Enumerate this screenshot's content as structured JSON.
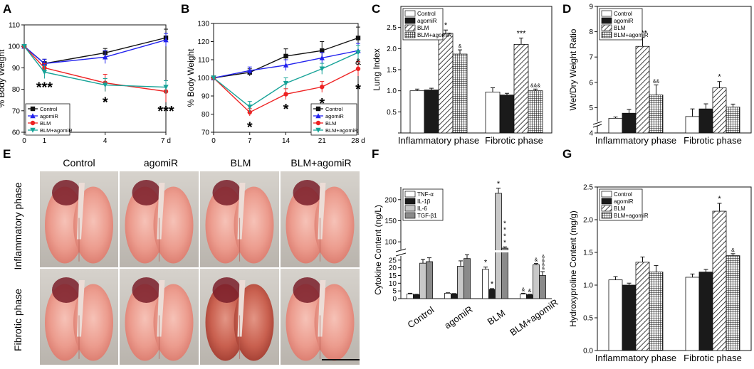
{
  "figure": {
    "panel_letters": [
      "A",
      "B",
      "C",
      "D",
      "E",
      "F",
      "G"
    ]
  },
  "colors": {
    "control": "#111111",
    "agomir": "#2222ee",
    "blm": "#ee2222",
    "blm_agomir": "#17a398",
    "bar_white": "#ffffff",
    "bar_black": "#1a1a1a",
    "bar_lightgray": "#c8c8c8",
    "bar_gray": "#8a8a8a"
  },
  "panelE": {
    "column_labels": [
      "Control",
      "agomiR",
      "BLM",
      "BLM+agomiR"
    ],
    "row_labels": [
      "Inflammatory phase",
      "Fibrotic phase"
    ],
    "lung_color_scores": [
      [
        0.2,
        0.1,
        0.35,
        0.3
      ],
      [
        0.25,
        0.3,
        0.7,
        0.35
      ]
    ]
  },
  "chart_data": [
    {
      "panel": "A",
      "type": "line",
      "x": [
        0,
        1,
        4,
        7
      ],
      "xticks": [
        "0",
        "1",
        "4",
        "7 d"
      ],
      "ylabel": "% Body Weight",
      "xlabel": "",
      "ylim": [
        60,
        110
      ],
      "yticks": [
        60,
        70,
        80,
        90,
        100,
        110
      ],
      "series": [
        {
          "name": "Control",
          "color_key": "control",
          "marker": "square",
          "values": [
            100,
            92,
            97,
            104
          ],
          "err": [
            0,
            2,
            2,
            4
          ]
        },
        {
          "name": "agomiR",
          "color_key": "agomir",
          "marker": "triangle",
          "values": [
            100,
            92,
            95,
            103
          ],
          "err": [
            0,
            2,
            3,
            3
          ]
        },
        {
          "name": "BLM",
          "color_key": "blm",
          "marker": "circle",
          "values": [
            100,
            90,
            83,
            79
          ],
          "err": [
            0,
            2,
            4,
            5
          ]
        },
        {
          "name": "BLM+agomiR",
          "color_key": "blm_agomir",
          "marker": "triangle-down",
          "values": [
            100,
            88,
            82,
            81
          ],
          "err": [
            0,
            3,
            3,
            3
          ]
        }
      ],
      "annotations": [
        {
          "text": "***",
          "x": 1,
          "y": 81
        },
        {
          "text": "*",
          "x": 4,
          "y": 74
        },
        {
          "text": "***",
          "x": 7,
          "y": 70
        }
      ],
      "legend": "bottom-left"
    },
    {
      "panel": "B",
      "type": "line",
      "x": [
        0,
        7,
        14,
        21,
        28
      ],
      "xticks": [
        "0",
        "7",
        "14",
        "21",
        "28 d"
      ],
      "ylabel": "% Body Weight",
      "xlabel": "",
      "ylim": [
        70,
        130
      ],
      "yticks": [
        70,
        80,
        90,
        100,
        110,
        120,
        130
      ],
      "series": [
        {
          "name": "Control",
          "color_key": "control",
          "marker": "square",
          "values": [
            100,
            103,
            112,
            115,
            122
          ],
          "err": [
            0,
            2,
            4,
            5,
            6
          ]
        },
        {
          "name": "agomiR",
          "color_key": "agomir",
          "marker": "triangle",
          "values": [
            100,
            104,
            107,
            111,
            115
          ],
          "err": [
            0,
            2,
            3,
            3,
            4
          ]
        },
        {
          "name": "BLM",
          "color_key": "blm",
          "marker": "circle",
          "values": [
            100,
            81,
            91,
            95,
            105
          ],
          "err": [
            0,
            2,
            3,
            3,
            4
          ]
        },
        {
          "name": "BLM+agomiR",
          "color_key": "blm_agomir",
          "marker": "triangle-down",
          "values": [
            100,
            84,
            97,
            105,
            114
          ],
          "err": [
            0,
            3,
            3,
            3,
            4
          ]
        }
      ],
      "annotations": [
        {
          "text": "*",
          "x": 7,
          "y": 73
        },
        {
          "text": "*",
          "x": 14,
          "y": 83
        },
        {
          "text": "*",
          "x": 21,
          "y": 86
        },
        {
          "text": "*",
          "x": 28,
          "y": 94
        },
        {
          "text": "&",
          "x": 28,
          "y": 110
        }
      ],
      "legend": "bottom-right"
    },
    {
      "panel": "C",
      "type": "bar",
      "categories": [
        "Inflammatory phase",
        "Fibrotic phase"
      ],
      "ylabel": "Lung Index",
      "xlabel": "",
      "ylim": [
        0,
        3.0
      ],
      "yticks": [
        0,
        0.5,
        1.0,
        1.5,
        2.0,
        2.5
      ],
      "ytick_labels": [
        "",
        "0.5",
        "1.0",
        "1.5",
        "2.0",
        "2.5"
      ],
      "series": [
        {
          "name": "Control",
          "fill": "white",
          "values": [
            1.0,
            0.97
          ],
          "err": [
            0.04,
            0.1
          ]
        },
        {
          "name": "agomiR",
          "fill": "black",
          "values": [
            1.02,
            0.9
          ],
          "err": [
            0.04,
            0.04
          ]
        },
        {
          "name": "BLM",
          "fill": "diagonal",
          "values": [
            2.36,
            2.1
          ],
          "err": [
            0.08,
            0.15
          ]
        },
        {
          "name": "BLM+agomiR",
          "fill": "grid",
          "values": [
            1.87,
            1.0
          ],
          "err": [
            0.1,
            0.04
          ]
        }
      ],
      "sig": [
        {
          "cat": 0,
          "series": 2,
          "text": "*"
        },
        {
          "cat": 0,
          "series": 3,
          "text": "&"
        },
        {
          "cat": 1,
          "series": 2,
          "text": "***"
        },
        {
          "cat": 1,
          "series": 3,
          "text": "&&&"
        }
      ],
      "legend": "top-left"
    },
    {
      "panel": "D",
      "type": "bar",
      "categories": [
        "Inflammatory phase",
        "Fibrotic phase"
      ],
      "ylabel": "Wet/Dry Weight Ratio",
      "xlabel": "",
      "ylim": [
        4,
        9
      ],
      "axis_break": true,
      "yticks": [
        4,
        5,
        6,
        7,
        8,
        9
      ],
      "series": [
        {
          "name": "Control",
          "fill": "white",
          "values": [
            4.58,
            4.65
          ],
          "err": [
            0.05,
            0.3
          ]
        },
        {
          "name": "agomiR",
          "fill": "black",
          "values": [
            4.78,
            4.95
          ],
          "err": [
            0.15,
            0.2
          ]
        },
        {
          "name": "BLM",
          "fill": "diagonal",
          "values": [
            7.42,
            5.78
          ],
          "err": [
            0.35,
            0.25
          ]
        },
        {
          "name": "BLM+agomiR",
          "fill": "grid",
          "values": [
            5.5,
            5.02
          ],
          "err": [
            0.4,
            0.12
          ]
        }
      ],
      "sig": [
        {
          "cat": 0,
          "series": 2,
          "text": "***"
        },
        {
          "cat": 0,
          "series": 3,
          "text": "&&"
        },
        {
          "cat": 1,
          "series": 2,
          "text": "*"
        }
      ],
      "legend": "top-left"
    },
    {
      "panel": "F",
      "type": "bar",
      "categories": [
        "Control",
        "agomiR",
        "BLM",
        "BLM+agomiR"
      ],
      "ylabel": "Cytokine Content (ng/L)",
      "xlabel": "",
      "axis_break": true,
      "lower_ylim": [
        0,
        30
      ],
      "lower_yticks": [
        0,
        5,
        10,
        15,
        20,
        25
      ],
      "upper_ylim": [
        80,
        230
      ],
      "upper_yticks": [
        100,
        150,
        200
      ],
      "series": [
        {
          "name": "TNF-α",
          "fill": "white",
          "values": [
            3.0,
            3.5,
            19.0,
            3.0
          ],
          "err": [
            0.5,
            0.3,
            1.5,
            0.5
          ]
        },
        {
          "name": "IL-1β",
          "fill": "black",
          "values": [
            2.5,
            3.0,
            6.0,
            2.5
          ],
          "err": [
            0.3,
            0.3,
            0.5,
            0.3
          ]
        },
        {
          "name": "IL-6",
          "fill": "lightgray",
          "values": [
            23.0,
            21.0,
            215.0,
            22.0
          ],
          "err": [
            2.5,
            3.5,
            12.0,
            0.8
          ]
        },
        {
          "name": "TGF-β1",
          "fill": "gray",
          "values": [
            24.0,
            26.0,
            85.0,
            15.0
          ],
          "err": [
            2.5,
            2.5,
            3.0,
            2.5
          ]
        }
      ],
      "sig": [
        {
          "cat": 2,
          "series": 0,
          "text": "*"
        },
        {
          "cat": 2,
          "series": 1,
          "text": "*"
        },
        {
          "cat": 2,
          "series": 2,
          "text": "*"
        },
        {
          "cat": 2,
          "series": 3,
          "text": "****"
        },
        {
          "cat": 3,
          "series": 0,
          "text": "&"
        },
        {
          "cat": 3,
          "series": 1,
          "text": "&"
        },
        {
          "cat": 3,
          "series": 2,
          "text": "&"
        },
        {
          "cat": 3,
          "series": 3,
          "text": "&&&&"
        }
      ],
      "legend": "top-left"
    },
    {
      "panel": "G",
      "type": "bar",
      "categories": [
        "Inflammatory phase",
        "Fibrotic phase"
      ],
      "ylabel": "Hydroxyproline Content (mg/g)",
      "xlabel": "",
      "ylim": [
        0,
        2.5
      ],
      "yticks": [
        0,
        0.5,
        1.0,
        1.5,
        2.0,
        2.5
      ],
      "ytick_labels": [
        "0.0",
        "0.5",
        "1.0",
        "1.5",
        "2.0",
        "2.5"
      ],
      "series": [
        {
          "name": "Control",
          "fill": "white",
          "values": [
            1.08,
            1.12
          ],
          "err": [
            0.05,
            0.05
          ]
        },
        {
          "name": "agomiR",
          "fill": "black",
          "values": [
            1.0,
            1.2
          ],
          "err": [
            0.03,
            0.04
          ]
        },
        {
          "name": "BLM",
          "fill": "diagonal",
          "values": [
            1.35,
            2.13
          ],
          "err": [
            0.08,
            0.12
          ]
        },
        {
          "name": "BLM+agomiR",
          "fill": "grid",
          "values": [
            1.2,
            1.45
          ],
          "err": [
            0.1,
            0.03
          ]
        }
      ],
      "sig": [
        {
          "cat": 1,
          "series": 2,
          "text": "*"
        },
        {
          "cat": 1,
          "series": 3,
          "text": "&"
        }
      ],
      "legend": "top-left"
    }
  ]
}
